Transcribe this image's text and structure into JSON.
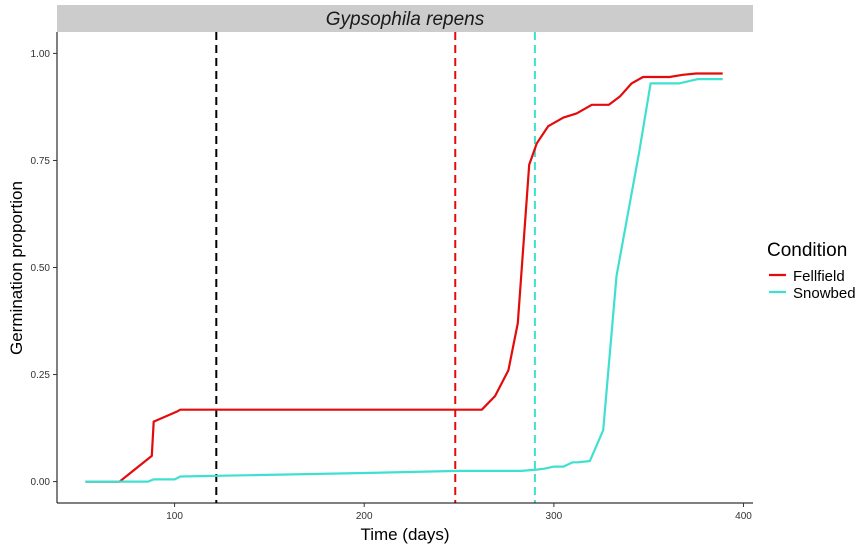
{
  "chart_data": {
    "type": "line",
    "title": "Gypsophila repens",
    "xlabel": "Time (days)",
    "ylabel": "Germination proportion",
    "xlim": [
      38,
      405
    ],
    "ylim": [
      -0.05,
      1.05
    ],
    "x_ticks": [
      100,
      200,
      300,
      400
    ],
    "y_ticks": [
      0.0,
      0.25,
      0.5,
      0.75,
      1.0
    ],
    "x_tick_labels": [
      "100",
      "200",
      "300",
      "400"
    ],
    "y_tick_labels": [
      "0.00",
      "0.25",
      "0.50",
      "0.75",
      "1.00"
    ],
    "grid": false,
    "legend": {
      "title": "Condition",
      "position": "right",
      "entries": [
        "Fellfield",
        "Snowbed"
      ]
    },
    "colors": {
      "Fellfield": "#e30b0b",
      "Snowbed": "#40e0d0",
      "strip_bg": "#cccccc"
    },
    "series": [
      {
        "name": "Fellfield",
        "color": "#e30b0b",
        "x": [
          53,
          71,
          88,
          89,
          101,
          103,
          261,
          262,
          269,
          276,
          281,
          287,
          291,
          297,
          305,
          312,
          320,
          329,
          335,
          341,
          347,
          361,
          368,
          375,
          389
        ],
        "y": [
          0.0,
          0.0,
          0.06,
          0.14,
          0.163,
          0.168,
          0.168,
          0.168,
          0.2,
          0.26,
          0.37,
          0.74,
          0.79,
          0.83,
          0.85,
          0.86,
          0.88,
          0.88,
          0.9,
          0.93,
          0.945,
          0.945,
          0.95,
          0.953,
          0.953
        ]
      },
      {
        "name": "Snowbed",
        "color": "#40e0d0",
        "x": [
          53,
          86,
          89,
          100,
          103,
          140,
          200,
          250,
          283,
          291,
          295,
          300,
          305,
          310,
          313,
          319,
          326,
          333,
          345,
          351,
          356,
          366,
          376,
          389
        ],
        "y": [
          0.0,
          0.0,
          0.005,
          0.005,
          0.012,
          0.015,
          0.02,
          0.025,
          0.025,
          0.028,
          0.03,
          0.035,
          0.035,
          0.045,
          0.045,
          0.048,
          0.12,
          0.48,
          0.77,
          0.93,
          0.93,
          0.93,
          0.94,
          0.94
        ]
      }
    ],
    "reference_lines": [
      {
        "x": 122,
        "color": "#000000",
        "style": "dashed"
      },
      {
        "x": 248,
        "color": "#e30b0b",
        "style": "dashed"
      },
      {
        "x": 290,
        "color": "#40e0d0",
        "style": "dashed"
      }
    ]
  }
}
